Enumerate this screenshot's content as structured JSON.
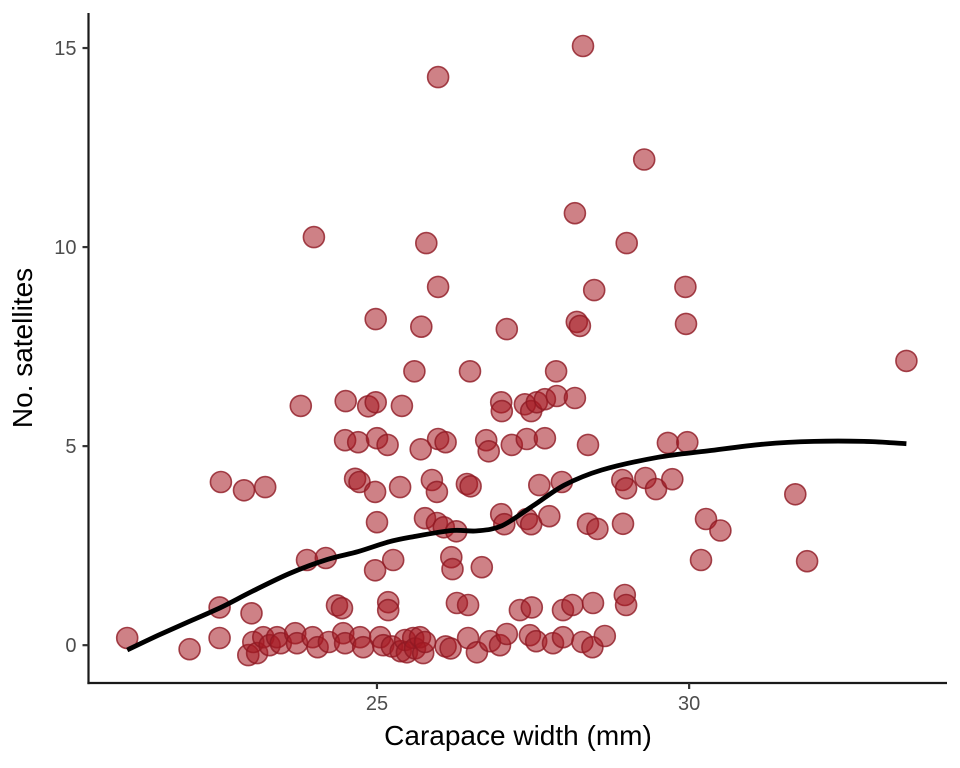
{
  "chart_data": {
    "type": "scatter",
    "title": "",
    "xlabel": "Carapace width (mm)",
    "ylabel": "No. satellites",
    "x_ticks": [
      25,
      30
    ],
    "y_ticks": [
      0,
      5,
      10,
      15
    ],
    "xlim": [
      20.38,
      34.13
    ],
    "ylim": [
      -0.95,
      15.88
    ],
    "grid": "off",
    "legend": "none",
    "style": {
      "point_fill": "#a51923",
      "point_fill_opacity": 0.55,
      "point_stroke": "#8f1923",
      "point_stroke_opacity": 0.8,
      "point_radius": 10.5,
      "smooth_line_color": "#000000",
      "smooth_line_width": 4.8,
      "axis_line_color": "#1a1a1a",
      "tick_color": "#333333",
      "tick_label_color": "#4d4d4d"
    },
    "points": [
      [
        21.0,
        0.18
      ],
      [
        22.0,
        -0.1
      ],
      [
        22.48,
        0.95
      ],
      [
        22.48,
        0.18
      ],
      [
        22.5,
        4.1
      ],
      [
        22.87,
        3.89
      ],
      [
        22.94,
        -0.25
      ],
      [
        22.99,
        0.8
      ],
      [
        23.02,
        0.08
      ],
      [
        23.08,
        -0.2
      ],
      [
        23.18,
        0.2
      ],
      [
        23.21,
        3.97
      ],
      [
        23.28,
        0.0
      ],
      [
        23.4,
        0.2
      ],
      [
        23.46,
        0.05
      ],
      [
        23.69,
        0.3
      ],
      [
        23.72,
        0.05
      ],
      [
        23.78,
        6.01
      ],
      [
        23.88,
        2.14
      ],
      [
        23.97,
        0.2
      ],
      [
        23.99,
        10.25
      ],
      [
        24.05,
        -0.05
      ],
      [
        24.18,
        2.19
      ],
      [
        24.23,
        0.08
      ],
      [
        24.36,
        1.0
      ],
      [
        24.44,
        0.93
      ],
      [
        24.46,
        0.3
      ],
      [
        24.49,
        0.05
      ],
      [
        24.49,
        5.15
      ],
      [
        24.5,
        6.13
      ],
      [
        24.65,
        4.18
      ],
      [
        24.7,
        5.1
      ],
      [
        24.72,
        4.1
      ],
      [
        24.73,
        0.2
      ],
      [
        24.78,
        -0.05
      ],
      [
        24.86,
        6.0
      ],
      [
        24.97,
        3.85
      ],
      [
        24.97,
        1.88
      ],
      [
        24.98,
        8.19
      ],
      [
        24.98,
        6.1
      ],
      [
        25.0,
        5.2
      ],
      [
        25.0,
        3.09
      ],
      [
        25.05,
        0.2
      ],
      [
        25.1,
        0.0
      ],
      [
        25.17,
        5.03
      ],
      [
        25.18,
        1.08
      ],
      [
        25.18,
        0.88
      ],
      [
        25.24,
        -0.03
      ],
      [
        25.26,
        2.14
      ],
      [
        25.37,
        3.97
      ],
      [
        25.38,
        -0.15
      ],
      [
        25.4,
        6.01
      ],
      [
        25.45,
        0.13
      ],
      [
        25.48,
        -0.18
      ],
      [
        25.58,
        0.18
      ],
      [
        25.6,
        6.88
      ],
      [
        25.61,
        -0.08
      ],
      [
        25.69,
        0.2
      ],
      [
        25.7,
        4.92
      ],
      [
        25.71,
        8.0
      ],
      [
        25.74,
        -0.2
      ],
      [
        25.77,
        3.19
      ],
      [
        25.77,
        0.08
      ],
      [
        25.79,
        10.1
      ],
      [
        25.88,
        4.15
      ],
      [
        25.96,
        3.85
      ],
      [
        25.96,
        3.07
      ],
      [
        25.98,
        14.27
      ],
      [
        25.98,
        9.0
      ],
      [
        25.98,
        5.18
      ],
      [
        26.07,
        2.96
      ],
      [
        26.1,
        -0.03
      ],
      [
        26.1,
        5.1
      ],
      [
        26.18,
        -0.08
      ],
      [
        26.19,
        2.21
      ],
      [
        26.21,
        1.91
      ],
      [
        26.27,
        2.86
      ],
      [
        26.28,
        1.06
      ],
      [
        26.44,
        4.05
      ],
      [
        26.46,
        1.01
      ],
      [
        26.46,
        0.18
      ],
      [
        26.49,
        6.88
      ],
      [
        26.5,
        3.99
      ],
      [
        26.6,
        -0.18
      ],
      [
        26.68,
        1.96
      ],
      [
        26.75,
        5.15
      ],
      [
        26.79,
        4.87
      ],
      [
        26.81,
        0.1
      ],
      [
        26.97,
        0.0
      ],
      [
        26.99,
        6.1
      ],
      [
        26.99,
        3.29
      ],
      [
        27.0,
        5.88
      ],
      [
        27.04,
        3.04
      ],
      [
        27.08,
        7.94
      ],
      [
        27.08,
        0.28
      ],
      [
        27.16,
        5.03
      ],
      [
        27.29,
        0.88
      ],
      [
        27.37,
        6.05
      ],
      [
        27.4,
        5.18
      ],
      [
        27.4,
        3.17
      ],
      [
        27.45,
        0.25
      ],
      [
        27.47,
        5.88
      ],
      [
        27.47,
        3.04
      ],
      [
        27.48,
        0.95
      ],
      [
        27.55,
        0.1
      ],
      [
        27.56,
        6.1
      ],
      [
        27.6,
        4.02
      ],
      [
        27.69,
        6.18
      ],
      [
        27.69,
        5.2
      ],
      [
        27.76,
        3.24
      ],
      [
        27.82,
        0.05
      ],
      [
        27.87,
        6.88
      ],
      [
        27.88,
        6.26
      ],
      [
        27.96,
        4.1
      ],
      [
        27.98,
        0.88
      ],
      [
        27.98,
        0.2
      ],
      [
        28.13,
        1.01
      ],
      [
        28.17,
        6.21
      ],
      [
        28.17,
        10.85
      ],
      [
        28.2,
        8.12
      ],
      [
        28.25,
        8.02
      ],
      [
        28.29,
        0.08
      ],
      [
        28.3,
        15.05
      ],
      [
        28.38,
        5.03
      ],
      [
        28.38,
        3.05
      ],
      [
        28.45,
        -0.05
      ],
      [
        28.46,
        1.06
      ],
      [
        28.48,
        8.92
      ],
      [
        28.53,
        2.92
      ],
      [
        28.65,
        0.23
      ],
      [
        28.93,
        4.15
      ],
      [
        28.94,
        3.05
      ],
      [
        28.97,
        1.26
      ],
      [
        28.99,
        3.94
      ],
      [
        28.99,
        1.01
      ],
      [
        29.0,
        10.1
      ],
      [
        29.28,
        12.2
      ],
      [
        29.3,
        4.2
      ],
      [
        29.47,
        3.92
      ],
      [
        29.66,
        5.08
      ],
      [
        29.73,
        4.17
      ],
      [
        29.94,
        9.0
      ],
      [
        29.95,
        8.07
      ],
      [
        29.97,
        5.1
      ],
      [
        30.19,
        2.14
      ],
      [
        30.27,
        3.17
      ],
      [
        30.5,
        2.88
      ],
      [
        31.7,
        3.79
      ],
      [
        31.89,
        2.11
      ],
      [
        33.48,
        7.14
      ]
    ],
    "smooth_line": [
      [
        21.0,
        -0.12
      ],
      [
        21.5,
        0.25
      ],
      [
        22.0,
        0.6
      ],
      [
        22.5,
        0.95
      ],
      [
        23.0,
        1.35
      ],
      [
        23.6,
        1.8
      ],
      [
        24.2,
        2.15
      ],
      [
        24.7,
        2.35
      ],
      [
        25.2,
        2.6
      ],
      [
        25.6,
        2.73
      ],
      [
        26.2,
        2.88
      ],
      [
        26.6,
        2.87
      ],
      [
        27.0,
        3.0
      ],
      [
        27.5,
        3.5
      ],
      [
        28.0,
        4.02
      ],
      [
        28.6,
        4.4
      ],
      [
        29.5,
        4.72
      ],
      [
        30.3,
        4.88
      ],
      [
        31.2,
        5.05
      ],
      [
        32.0,
        5.12
      ],
      [
        32.8,
        5.12
      ],
      [
        33.48,
        5.06
      ]
    ]
  }
}
